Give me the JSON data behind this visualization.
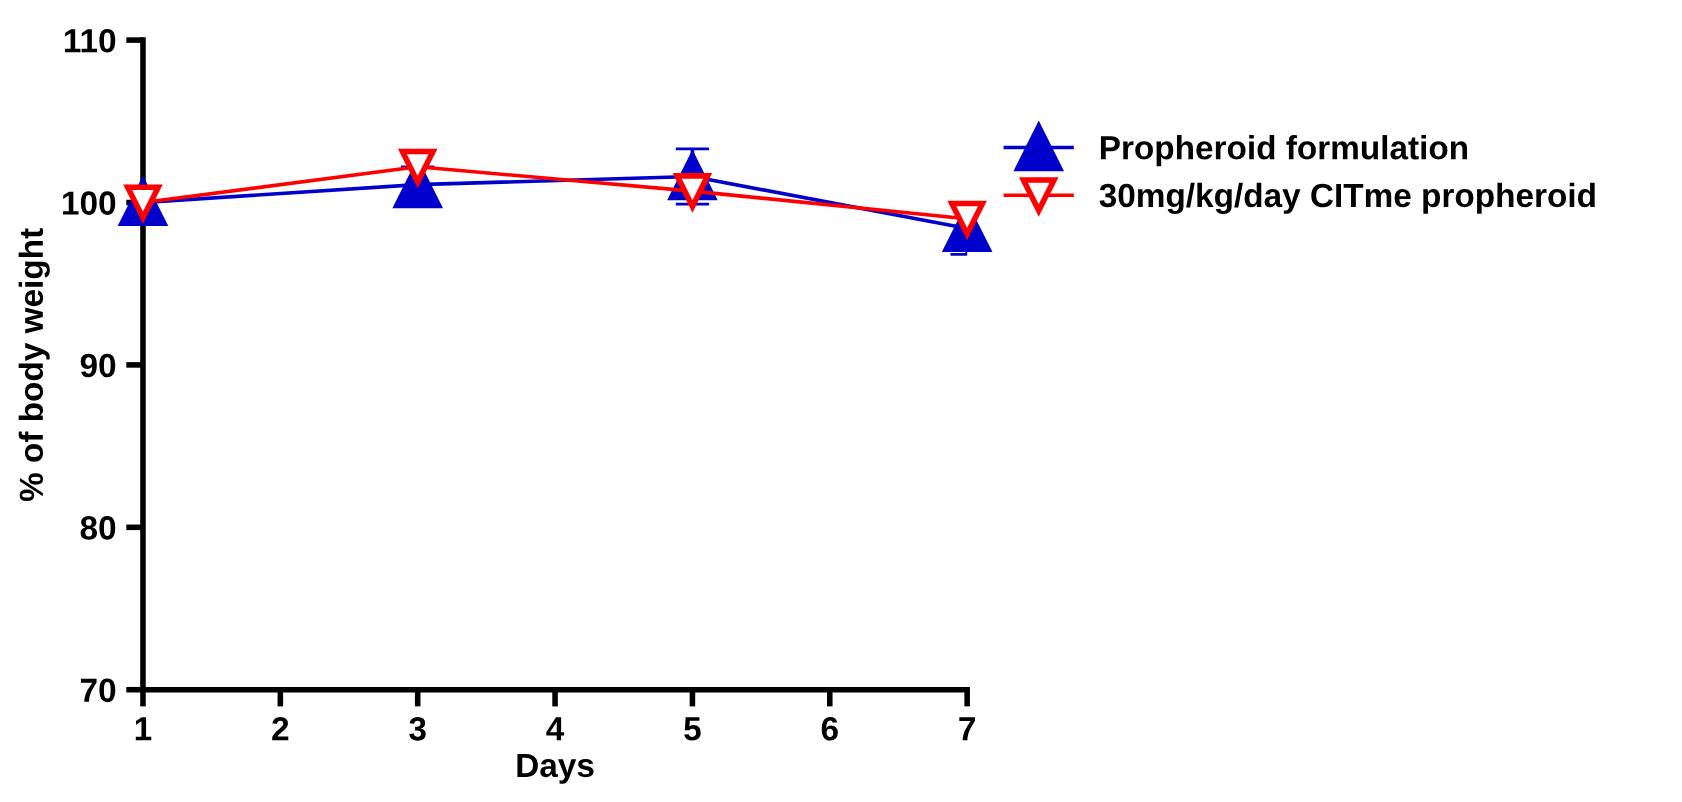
{
  "chart_data": {
    "type": "line",
    "xlabel": "Days",
    "ylabel": "% of body weight",
    "x": [
      1,
      3,
      5,
      7
    ],
    "series": [
      {
        "name": "Propheroid formulation",
        "color": "#0000cc",
        "marker": "triangle",
        "values": [
          100,
          101.1,
          101.6,
          98.4
        ],
        "errors": [
          null,
          1.1,
          1.7,
          1.6
        ]
      },
      {
        "name": "30mg/kg/day CITme propheroid",
        "color": "#ff0000",
        "marker": "triangle_down_open",
        "values": [
          100,
          102.2,
          100.7,
          99.0
        ]
      }
    ],
    "xlim": [
      1,
      7
    ],
    "xticks": [
      1,
      2,
      3,
      4,
      5,
      6,
      7
    ],
    "ylim": [
      70,
      110
    ],
    "yticks": [
      70,
      80,
      90,
      100,
      110
    ],
    "grid": false,
    "legend": "right"
  }
}
